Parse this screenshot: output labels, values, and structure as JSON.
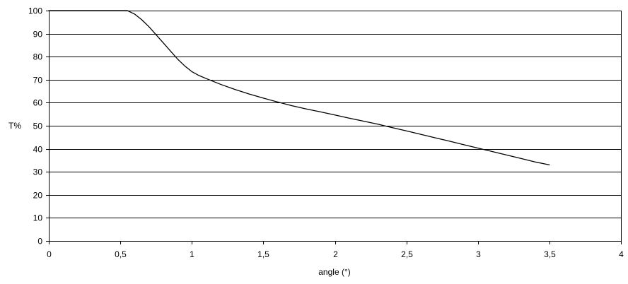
{
  "chart_data": {
    "type": "line",
    "title": "",
    "xlabel": "angle (°)",
    "ylabel": "T%",
    "xlim": [
      0,
      4
    ],
    "ylim": [
      0,
      100
    ],
    "grid": "horizontal",
    "legend": "none",
    "x_ticks": [
      0,
      0.5,
      1,
      1.5,
      2,
      2.5,
      3,
      3.5,
      4
    ],
    "x_tick_labels": [
      "0",
      "0,5",
      "1",
      "1,5",
      "2",
      "2,5",
      "3",
      "3,5",
      "4"
    ],
    "y_ticks": [
      0,
      10,
      20,
      30,
      40,
      50,
      60,
      70,
      80,
      90,
      100
    ],
    "y_tick_labels": [
      "0",
      "10",
      "20",
      "30",
      "40",
      "50",
      "60",
      "70",
      "80",
      "90",
      "100"
    ],
    "series": [
      {
        "color": "#000000",
        "x": [
          0,
          0.1,
          0.2,
          0.3,
          0.4,
          0.5,
          0.55,
          0.6,
          0.65,
          0.7,
          0.75,
          0.8,
          0.85,
          0.9,
          0.95,
          1.0,
          1.05,
          1.1,
          1.2,
          1.3,
          1.4,
          1.5,
          1.6,
          1.7,
          1.8,
          1.9,
          2.0,
          2.1,
          2.2,
          2.3,
          2.4,
          2.5,
          2.6,
          2.7,
          2.8,
          2.9,
          3.0,
          3.1,
          3.2,
          3.3,
          3.4,
          3.5
        ],
        "values": [
          100,
          100,
          100,
          100,
          100,
          100,
          100,
          98.5,
          96,
          93,
          89.5,
          86,
          82.5,
          79,
          76,
          73.5,
          71.8,
          70.5,
          68,
          65.8,
          63.8,
          62,
          60.3,
          58.7,
          57.3,
          56,
          54.7,
          53.3,
          52,
          50.7,
          49.2,
          47.8,
          46.3,
          44.8,
          43.3,
          41.8,
          40.3,
          38.8,
          37.3,
          35.8,
          34.3,
          33
        ]
      }
    ]
  },
  "colors": {
    "background": "#ffffff",
    "grid": "#000000",
    "axis": "#000000",
    "line": "#000000"
  }
}
